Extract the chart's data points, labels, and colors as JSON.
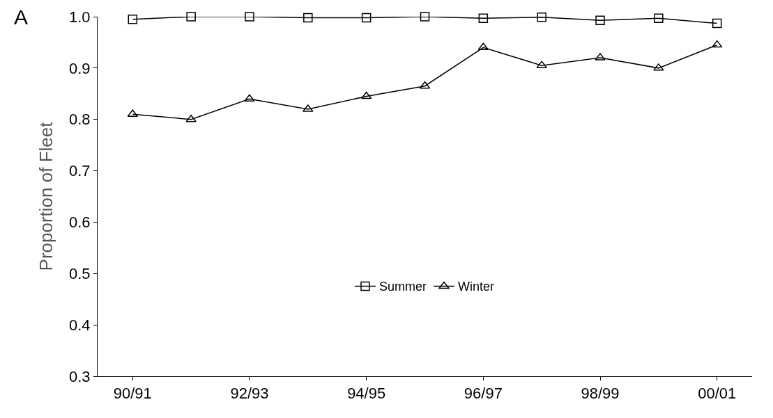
{
  "chart_data": {
    "type": "line",
    "ylabel": "Proportion of Fleet",
    "annotations": [
      "A"
    ],
    "categories": [
      "90/91",
      null,
      "92/93",
      null,
      "94/95",
      null,
      "96/97",
      null,
      "98/99",
      null,
      "00/01"
    ],
    "series": [
      {
        "name": "Summer",
        "color": "#000000",
        "marker": "square",
        "values": [
          0.995,
          1.0,
          1.0,
          0.998,
          0.998,
          1.0,
          0.997,
          0.999,
          0.993,
          0.997,
          0.987
        ]
      },
      {
        "name": "Winter",
        "color": "#000000",
        "marker": "triangle",
        "values": [
          0.81,
          0.8,
          0.84,
          0.82,
          0.845,
          0.865,
          0.94,
          0.905,
          0.92,
          0.9,
          0.945
        ]
      }
    ],
    "ylim": [
      0.3,
      1.0
    ],
    "yticks": [
      0.3,
      0.4,
      0.5,
      0.6,
      0.7,
      0.8,
      0.9,
      {
        "value": 1.0,
        "label": "1.0"
      }
    ],
    "legend": "bottom",
    "line_style": "solid"
  }
}
